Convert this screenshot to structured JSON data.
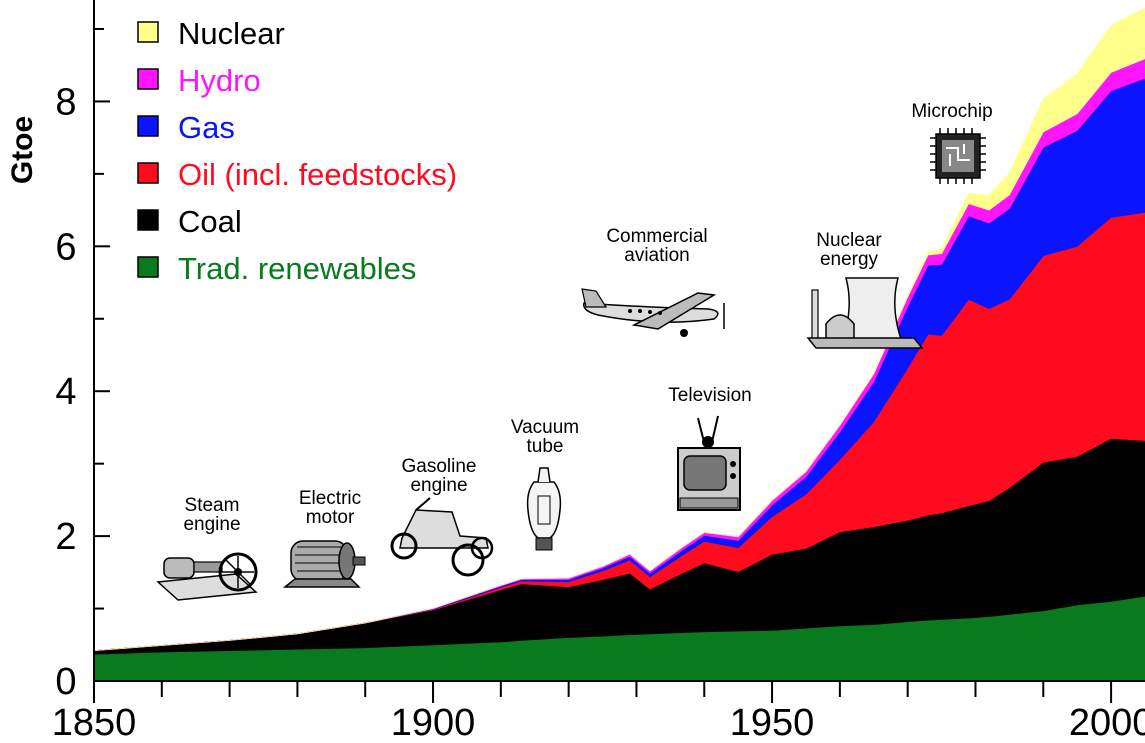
{
  "chart_data": {
    "type": "area",
    "stacked": true,
    "ylabel": "Gtoe",
    "xlim": [
      1850,
      2005
    ],
    "ylim": [
      0,
      9.4
    ],
    "x_ticks": [
      1850,
      1900,
      1950,
      2000
    ],
    "x_minor_step": 10,
    "y_ticks": [
      0,
      2,
      4,
      6,
      8
    ],
    "grid": false,
    "legend_position": "top-left",
    "x": [
      1850,
      1860,
      1870,
      1880,
      1890,
      1900,
      1910,
      1913,
      1920,
      1925,
      1929,
      1932,
      1937,
      1940,
      1945,
      1950,
      1955,
      1960,
      1965,
      1970,
      1973,
      1975,
      1979,
      1982,
      1985,
      1990,
      1995,
      2000,
      2005
    ],
    "series": [
      {
        "name": "Trad. renewables",
        "color": "#0a7a1e",
        "values": [
          0.37,
          0.4,
          0.42,
          0.44,
          0.46,
          0.5,
          0.54,
          0.56,
          0.6,
          0.62,
          0.64,
          0.65,
          0.67,
          0.68,
          0.69,
          0.7,
          0.73,
          0.76,
          0.78,
          0.82,
          0.84,
          0.85,
          0.87,
          0.89,
          0.92,
          0.97,
          1.05,
          1.1,
          1.17
        ]
      },
      {
        "name": "Coal",
        "color": "#000000",
        "values": [
          0.05,
          0.09,
          0.14,
          0.21,
          0.34,
          0.48,
          0.72,
          0.78,
          0.7,
          0.78,
          0.85,
          0.62,
          0.83,
          0.95,
          0.82,
          1.05,
          1.1,
          1.3,
          1.35,
          1.4,
          1.45,
          1.47,
          1.55,
          1.6,
          1.75,
          2.05,
          2.05,
          2.25,
          2.15
        ]
      },
      {
        "name": "Oil (incl. feedstocks)",
        "color": "#ff0a1e",
        "values": [
          0.0,
          0.0,
          0.0,
          0.0,
          0.0,
          0.01,
          0.03,
          0.04,
          0.07,
          0.12,
          0.18,
          0.17,
          0.25,
          0.3,
          0.33,
          0.52,
          0.75,
          1.0,
          1.45,
          2.1,
          2.5,
          2.45,
          2.85,
          2.65,
          2.6,
          2.85,
          2.9,
          3.05,
          3.15
        ]
      },
      {
        "name": "Gas",
        "color": "#0a14ff",
        "values": [
          0.0,
          0.0,
          0.0,
          0.0,
          0.0,
          0.01,
          0.02,
          0.02,
          0.03,
          0.04,
          0.05,
          0.05,
          0.07,
          0.08,
          0.1,
          0.16,
          0.24,
          0.38,
          0.55,
          0.85,
          0.95,
          0.98,
          1.15,
          1.18,
          1.25,
          1.5,
          1.6,
          1.75,
          1.85
        ]
      },
      {
        "name": "Hydro",
        "color": "#ff14ff",
        "values": [
          0.0,
          0.0,
          0.0,
          0.0,
          0.0,
          0.0,
          0.01,
          0.01,
          0.02,
          0.02,
          0.03,
          0.03,
          0.04,
          0.04,
          0.05,
          0.06,
          0.07,
          0.09,
          0.11,
          0.13,
          0.14,
          0.15,
          0.17,
          0.18,
          0.19,
          0.21,
          0.23,
          0.25,
          0.27
        ]
      },
      {
        "name": "Nuclear",
        "color": "#ffff8c",
        "values": [
          0.0,
          0.0,
          0.0,
          0.0,
          0.0,
          0.0,
          0.0,
          0.0,
          0.0,
          0.0,
          0.0,
          0.0,
          0.0,
          0.0,
          0.0,
          0.0,
          0.0,
          0.0,
          0.01,
          0.02,
          0.04,
          0.06,
          0.14,
          0.2,
          0.3,
          0.45,
          0.55,
          0.65,
          0.7
        ]
      }
    ],
    "legend": [
      {
        "label": "Nuclear",
        "color": "#ffff8c",
        "text_color": "#000000"
      },
      {
        "label": "Hydro",
        "color": "#ff14ff",
        "text_color": "#ff14ff"
      },
      {
        "label": "Gas",
        "color": "#0a14ff",
        "text_color": "#0a14ff"
      },
      {
        "label": "Oil (incl. feedstocks)",
        "color": "#ff0a1e",
        "text_color": "#ff0a1e"
      },
      {
        "label": "Coal",
        "color": "#000000",
        "text_color": "#000000"
      },
      {
        "label": "Trad. renewables",
        "color": "#0a7a1e",
        "text_color": "#0a7a1e"
      }
    ],
    "annotations": [
      {
        "id": "steam",
        "lines": [
          "Steam",
          "engine"
        ],
        "icon": "steam-engine-icon"
      },
      {
        "id": "motor",
        "lines": [
          "Electric",
          "motor"
        ],
        "icon": "electric-motor-icon"
      },
      {
        "id": "gasoline",
        "lines": [
          "Gasoline",
          "engine"
        ],
        "icon": "automobile-icon"
      },
      {
        "id": "vacuum",
        "lines": [
          "Vacuum",
          "tube"
        ],
        "icon": "vacuum-tube-icon"
      },
      {
        "id": "aviation",
        "lines": [
          "Commercial",
          "aviation"
        ],
        "icon": "airplane-icon"
      },
      {
        "id": "television",
        "lines": [
          "Television"
        ],
        "icon": "television-icon"
      },
      {
        "id": "nuclear",
        "lines": [
          "Nuclear",
          "energy"
        ],
        "icon": "nuclear-plant-icon"
      },
      {
        "id": "microchip",
        "lines": [
          "Microchip"
        ],
        "icon": "microchip-icon"
      }
    ]
  }
}
